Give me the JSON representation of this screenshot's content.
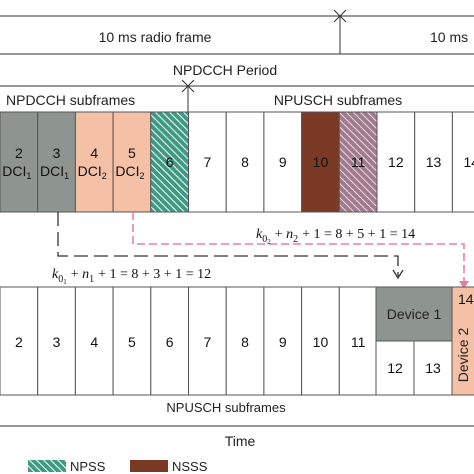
{
  "header": {
    "radio_frame_label_1": "10 ms radio frame",
    "radio_frame_label_2": "10 ms",
    "period_label": "NPDCCH Period",
    "npdcch_subframes_label": "NPDCCH subframes",
    "npusch_subframes_label": "NPUSCH subframes"
  },
  "top_row": {
    "cells": [
      {
        "n": "2",
        "sub": "DCI",
        "subidx": "1",
        "fill": "#8e9590"
      },
      {
        "n": "3",
        "sub": "DCI",
        "subidx": "1",
        "fill": "#8e9590"
      },
      {
        "n": "4",
        "sub": "DCI",
        "subidx": "2",
        "fill": "#f4c0a6"
      },
      {
        "n": "5",
        "sub": "DCI",
        "subidx": "2",
        "fill": "#f4c0a6"
      },
      {
        "n": "6",
        "kind": "npss"
      },
      {
        "n": "7"
      },
      {
        "n": "8"
      },
      {
        "n": "9"
      },
      {
        "n": "10",
        "kind": "nsss"
      },
      {
        "n": "11",
        "kind": "nrs"
      },
      {
        "n": "12"
      },
      {
        "n": "13"
      },
      {
        "n": "14"
      }
    ]
  },
  "equations": {
    "eq1": {
      "k": "k",
      "k_sub": "0",
      "k_subsub": "2",
      "n": "n",
      "n_sub": "2",
      "rest": "+ 1 = 8 + 5 + 1 = 14"
    },
    "eq2": {
      "k": "k",
      "k_sub": "0",
      "k_subsub": "1",
      "n": "n",
      "n_sub": "1",
      "rest": "+ 1 = 8 + 3 + 1 = 12"
    }
  },
  "bottom_row": {
    "cells": [
      "2",
      "3",
      "4",
      "5",
      "6",
      "7",
      "8",
      "9",
      "10",
      "11"
    ],
    "device1_label": "Device 1",
    "device2_label": "Device 2",
    "sub_cells": [
      "12",
      "13"
    ],
    "right_cell_top": "14",
    "caption": "NPUSCH  subframes"
  },
  "time_label": "Time",
  "legend": {
    "npss_label": "NPSS",
    "nsss_label": "NSSS"
  },
  "colors": {
    "dci1_fill": "#8e9590",
    "dci2_fill": "#f4c0a6",
    "npss_fill": "#3e9a82",
    "nsss_fill": "#7a3a26",
    "nrs_fill": "#a27a8e",
    "device1_fill": "#8e9590",
    "device2_fill": "#f4c0a6",
    "arrow_black": "#333333",
    "arrow_pink": "#e87ea8"
  }
}
